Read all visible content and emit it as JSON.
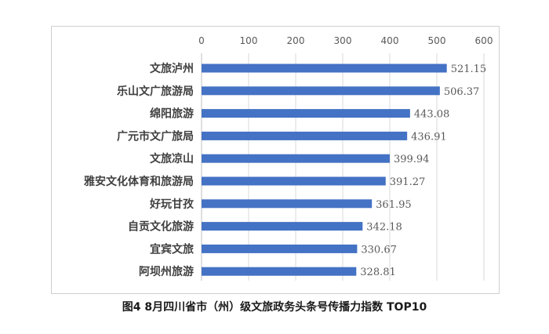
{
  "caption": "图4  8月四川省市（州）级文旅政务头条号传播力指数 TOP10",
  "chart_data": {
    "type": "bar",
    "orientation": "horizontal",
    "title": "",
    "xlabel": "",
    "ylabel": "",
    "xlim": [
      0,
      600
    ],
    "xticks": [
      0,
      100,
      200,
      300,
      400,
      500,
      600
    ],
    "x_axis_position": "top",
    "grid": true,
    "bar_color": "#4472c4",
    "categories": [
      "文旅泸州",
      "乐山文广旅游局",
      "绵阳旅游",
      "广元市文广旅局",
      "文旅凉山",
      "雅安文化体育和旅游局",
      "好玩甘孜",
      "自贡文化旅游",
      "宜宾文旅",
      "阿坝州旅游"
    ],
    "values": [
      521.15,
      506.37,
      443.08,
      436.91,
      399.94,
      391.27,
      361.95,
      342.18,
      330.67,
      328.81
    ],
    "value_labels": [
      "521.15",
      "506.37",
      "443.08",
      "436.91",
      "399.94",
      "391.27",
      "361.95",
      "342.18",
      "330.67",
      "328.81"
    ]
  }
}
